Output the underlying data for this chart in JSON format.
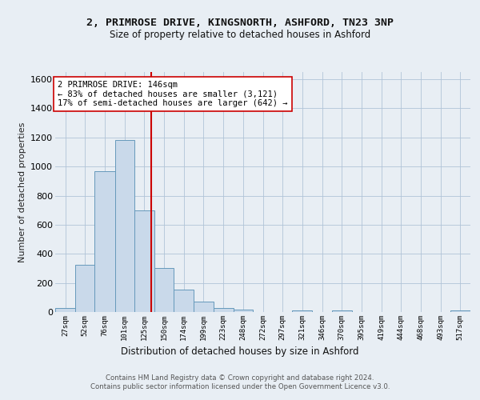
{
  "title1": "2, PRIMROSE DRIVE, KINGSNORTH, ASHFORD, TN23 3NP",
  "title2": "Size of property relative to detached houses in Ashford",
  "xlabel": "Distribution of detached houses by size in Ashford",
  "ylabel": "Number of detached properties",
  "bin_labels": [
    "27sqm",
    "52sqm",
    "76sqm",
    "101sqm",
    "125sqm",
    "150sqm",
    "174sqm",
    "199sqm",
    "223sqm",
    "248sqm",
    "272sqm",
    "297sqm",
    "321sqm",
    "346sqm",
    "370sqm",
    "395sqm",
    "419sqm",
    "444sqm",
    "468sqm",
    "493sqm",
    "517sqm"
  ],
  "bar_heights": [
    25,
    325,
    970,
    1185,
    700,
    305,
    155,
    70,
    25,
    15,
    0,
    0,
    10,
    0,
    10,
    0,
    0,
    0,
    0,
    0,
    10
  ],
  "bar_color": "#c9d9ea",
  "bar_edge_color": "#6699bb",
  "annotation_text": "2 PRIMROSE DRIVE: 146sqm\n← 83% of detached houses are smaller (3,121)\n17% of semi-detached houses are larger (642) →",
  "vline_x": 146,
  "bin_edges": [
    27,
    52,
    76,
    101,
    125,
    150,
    174,
    199,
    223,
    248,
    272,
    297,
    321,
    346,
    370,
    395,
    419,
    444,
    468,
    493,
    517
  ],
  "footer": "Contains HM Land Registry data © Crown copyright and database right 2024.\nContains public sector information licensed under the Open Government Licence v3.0.",
  "bg_color": "#e8eef4",
  "plot_bg_color": "#e8eef4",
  "ylim": [
    0,
    1650
  ],
  "vline_color": "#cc0000",
  "annotation_box_color": "#ffffff",
  "annotation_box_edge": "#cc0000",
  "grid_color": "#b0c4d8",
  "title1_fontsize": 9.5,
  "title2_fontsize": 8.5,
  "ylabel_fontsize": 8,
  "xlabel_fontsize": 8.5,
  "tick_fontsize": 6.5,
  "footer_fontsize": 6.2,
  "annot_fontsize": 7.5
}
